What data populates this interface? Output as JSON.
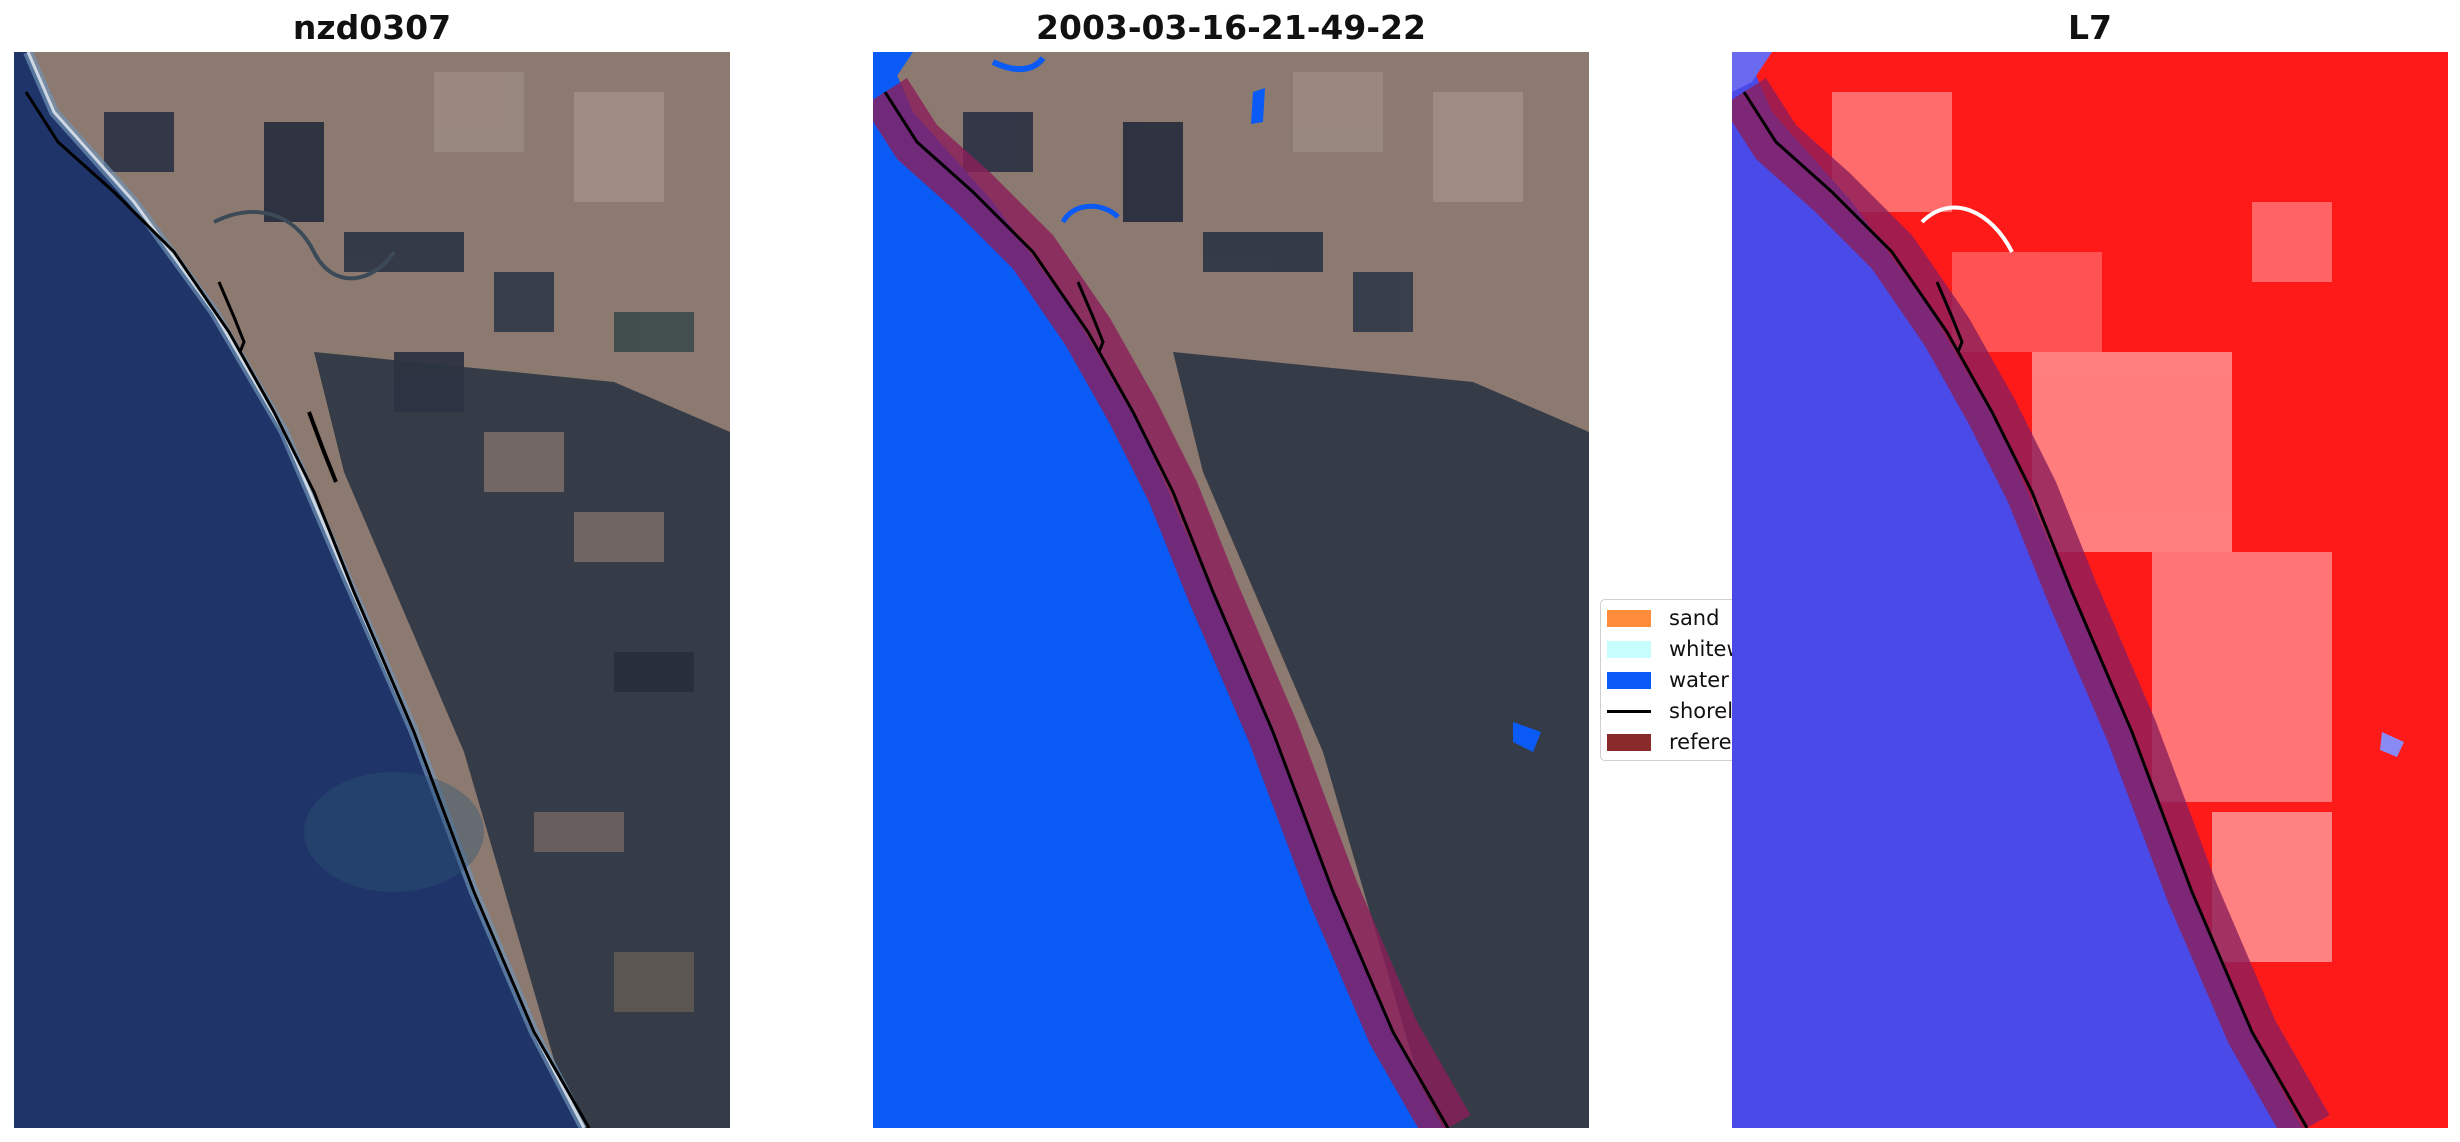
{
  "panels": [
    {
      "title": "nzd0307",
      "view": "rgb-composite"
    },
    {
      "title": "2003-03-16-21-49-22",
      "view": "classified"
    },
    {
      "title": "L7",
      "view": "water-index"
    }
  ],
  "legend": {
    "items": [
      {
        "label": "sand",
        "color": "#ff8c3a",
        "kind": "patch"
      },
      {
        "label": "whitewater",
        "color": "#c8fdfd",
        "kind": "patch"
      },
      {
        "label": "water",
        "color": "#0a5af5",
        "kind": "patch"
      },
      {
        "label": "shoreline",
        "color": "#000000",
        "kind": "line"
      },
      {
        "label": "reference shoreline buffer",
        "color": "#8b2a2a",
        "kind": "patch"
      }
    ]
  },
  "colors": {
    "ocean": "#1f3468",
    "water_class": "#0a5af5",
    "buffer": "#8b1e5a",
    "land_index": "#ff1a1a",
    "water_index": "#4a4ae8"
  }
}
